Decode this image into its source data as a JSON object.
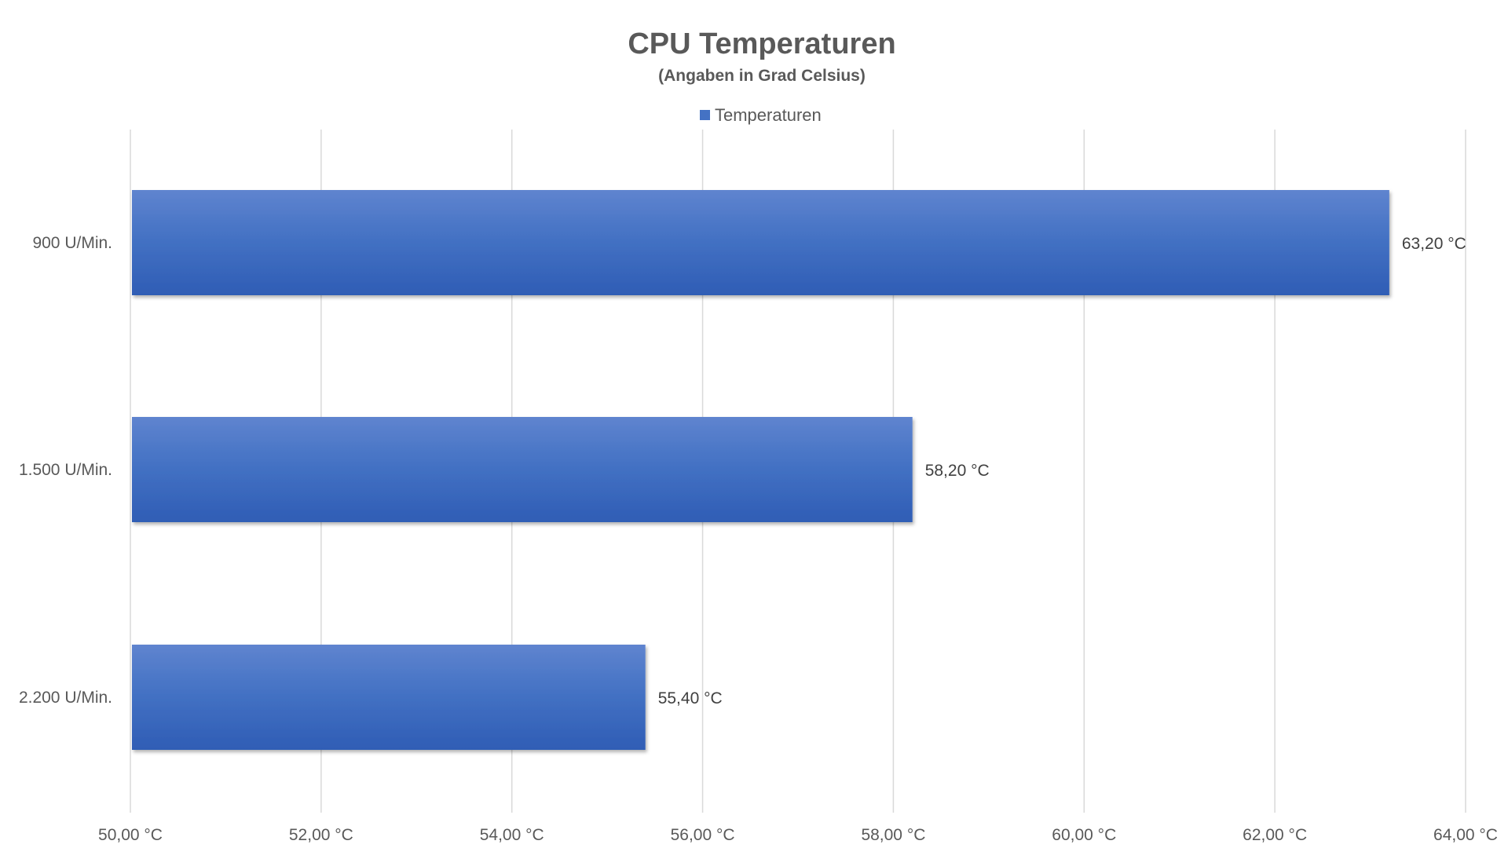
{
  "chart_data": {
    "type": "bar",
    "orientation": "horizontal",
    "title": "CPU Temperaturen",
    "subtitle": "(Angaben in Grad Celsius)",
    "categories": [
      "900 U/Min.",
      "1.500 U/Min.",
      "2.200 U/Min."
    ],
    "series": [
      {
        "name": "Temperaturen",
        "values": [
          63.2,
          58.2,
          55.4
        ],
        "value_labels": [
          "63,20 °C",
          "58,20 °C",
          "55,40 °C"
        ],
        "color": "#4472C4"
      }
    ],
    "xlim": [
      50,
      64
    ],
    "x_ticks": [
      50,
      52,
      54,
      56,
      58,
      60,
      62,
      64
    ],
    "x_tick_labels": [
      "50,00 °C",
      "52,00 °C",
      "54,00 °C",
      "56,00 °C",
      "58,00 °C",
      "60,00 °C",
      "62,00 °C",
      "64,00 °C"
    ],
    "xlabel": "",
    "ylabel": "",
    "grid": true,
    "legend_position": "top"
  }
}
